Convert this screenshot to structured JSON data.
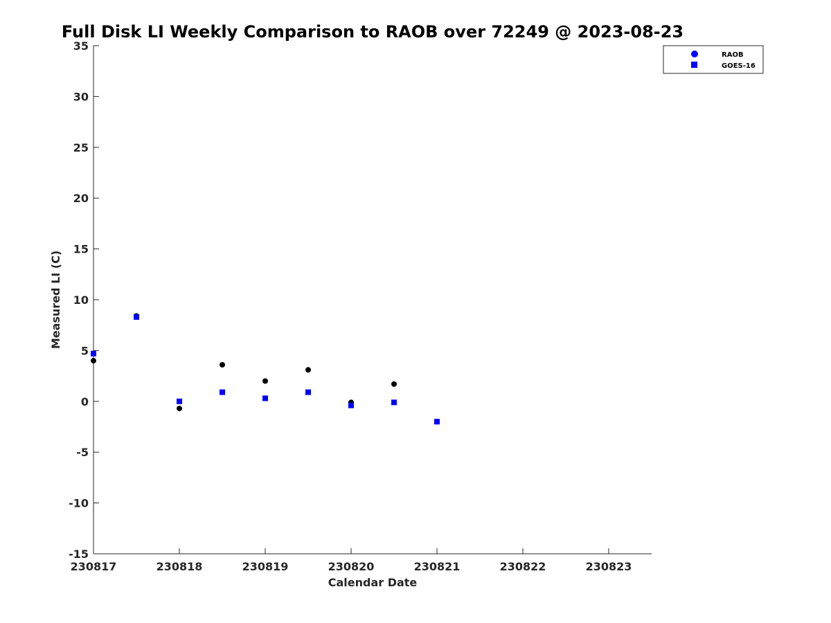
{
  "chart_data": {
    "type": "scatter",
    "title": "Full Disk LI Weekly Comparison to RAOB over 72249 @ 2023-08-23",
    "xlabel": "Calendar Date",
    "ylabel": "Measured LI (C)",
    "x_tick_labels": [
      "230817",
      "230818",
      "230819",
      "230820",
      "230821",
      "230822",
      "230823"
    ],
    "x_tick_values": [
      0,
      1,
      2,
      3,
      4,
      5,
      6
    ],
    "xlim": [
      0,
      6.5
    ],
    "y_tick_labels": [
      "35",
      "30",
      "25",
      "20",
      "15",
      "10",
      "5",
      "0",
      "-5",
      "-10",
      "-15"
    ],
    "y_tick_values": [
      35,
      30,
      25,
      20,
      15,
      10,
      5,
      0,
      -5,
      -10,
      -15
    ],
    "ylim": [
      -15,
      35
    ],
    "grid": false,
    "legend_position": "top-right",
    "series": [
      {
        "name": "RAOB",
        "marker": "circle",
        "color": "#000000",
        "legend_color": "#0000ff",
        "x": [
          0,
          0.5,
          1,
          1.5,
          2,
          2.5,
          3,
          3.5,
          4
        ],
        "y": [
          4.0,
          8.4,
          -0.7,
          3.6,
          2.0,
          3.1,
          -0.1,
          1.7,
          -2.0
        ]
      },
      {
        "name": "GOES-16",
        "marker": "square",
        "color": "#0000ff",
        "legend_color": "#0000ff",
        "x": [
          0,
          0.5,
          1,
          1.5,
          2,
          2.5,
          3,
          3.5,
          4
        ],
        "y": [
          4.7,
          8.3,
          0.0,
          0.9,
          0.3,
          0.9,
          -0.4,
          -0.1,
          -2.0
        ]
      }
    ]
  }
}
